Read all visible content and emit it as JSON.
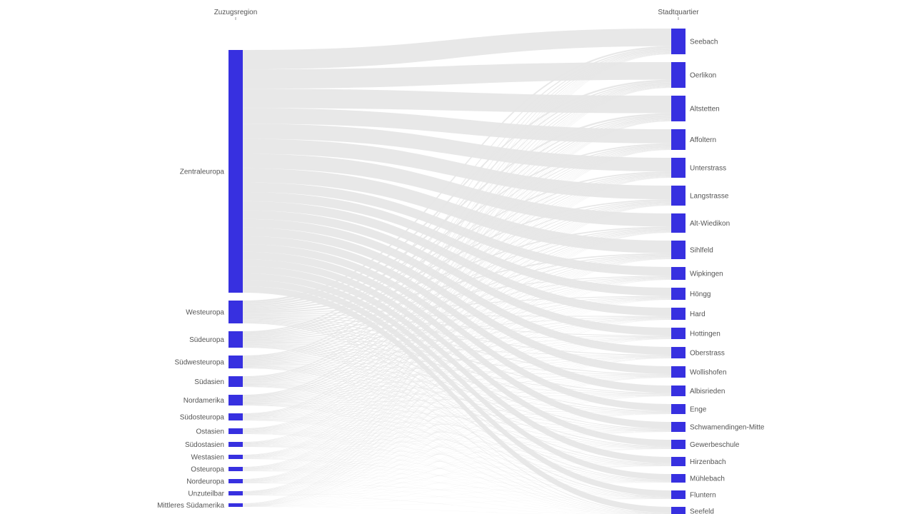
{
  "chart_data": {
    "type": "sankey",
    "source_axis_title": "Zuzugsregion",
    "target_axis_title": "Stadtquartier",
    "node_color": "#3730e0",
    "link_color": "#e6e6e6",
    "sources": [
      {
        "name": "Zentraleuropa",
        "value": 340
      },
      {
        "name": "Westeuropa",
        "value": 32
      },
      {
        "name": "Südeuropa",
        "value": 23
      },
      {
        "name": "Südwesteuropa",
        "value": 18
      },
      {
        "name": "Südasien",
        "value": 15
      },
      {
        "name": "Nordamerika",
        "value": 15
      },
      {
        "name": "Südosteuropa",
        "value": 10
      },
      {
        "name": "Ostasien",
        "value": 8
      },
      {
        "name": "Südostasien",
        "value": 7
      },
      {
        "name": "Westasien",
        "value": 6
      },
      {
        "name": "Osteuropa",
        "value": 6
      },
      {
        "name": "Nordeuropa",
        "value": 6
      },
      {
        "name": "Unzuteilbar",
        "value": 6
      },
      {
        "name": "Mittleres Südamerika",
        "value": 5
      }
    ],
    "targets": [
      {
        "name": "Seebach",
        "value": 36
      },
      {
        "name": "Oerlikon",
        "value": 36
      },
      {
        "name": "Altstetten",
        "value": 36
      },
      {
        "name": "Affoltern",
        "value": 29
      },
      {
        "name": "Unterstrass",
        "value": 28
      },
      {
        "name": "Langstrasse",
        "value": 28
      },
      {
        "name": "Alt-Wiedikon",
        "value": 27
      },
      {
        "name": "Sihlfeld",
        "value": 26
      },
      {
        "name": "Wipkingen",
        "value": 18
      },
      {
        "name": "Höngg",
        "value": 17
      },
      {
        "name": "Hard",
        "value": 17
      },
      {
        "name": "Hottingen",
        "value": 16
      },
      {
        "name": "Oberstrass",
        "value": 16
      },
      {
        "name": "Wollishofen",
        "value": 16
      },
      {
        "name": "Albisrieden",
        "value": 15
      },
      {
        "name": "Enge",
        "value": 14
      },
      {
        "name": "Schwamendingen-Mitte",
        "value": 14
      },
      {
        "name": "Gewerbeschule",
        "value": 13
      },
      {
        "name": "Hirzenbach",
        "value": 13
      },
      {
        "name": "Mühlebach",
        "value": 12
      },
      {
        "name": "Fluntern",
        "value": 12
      },
      {
        "name": "Seefeld",
        "value": 12
      }
    ]
  }
}
